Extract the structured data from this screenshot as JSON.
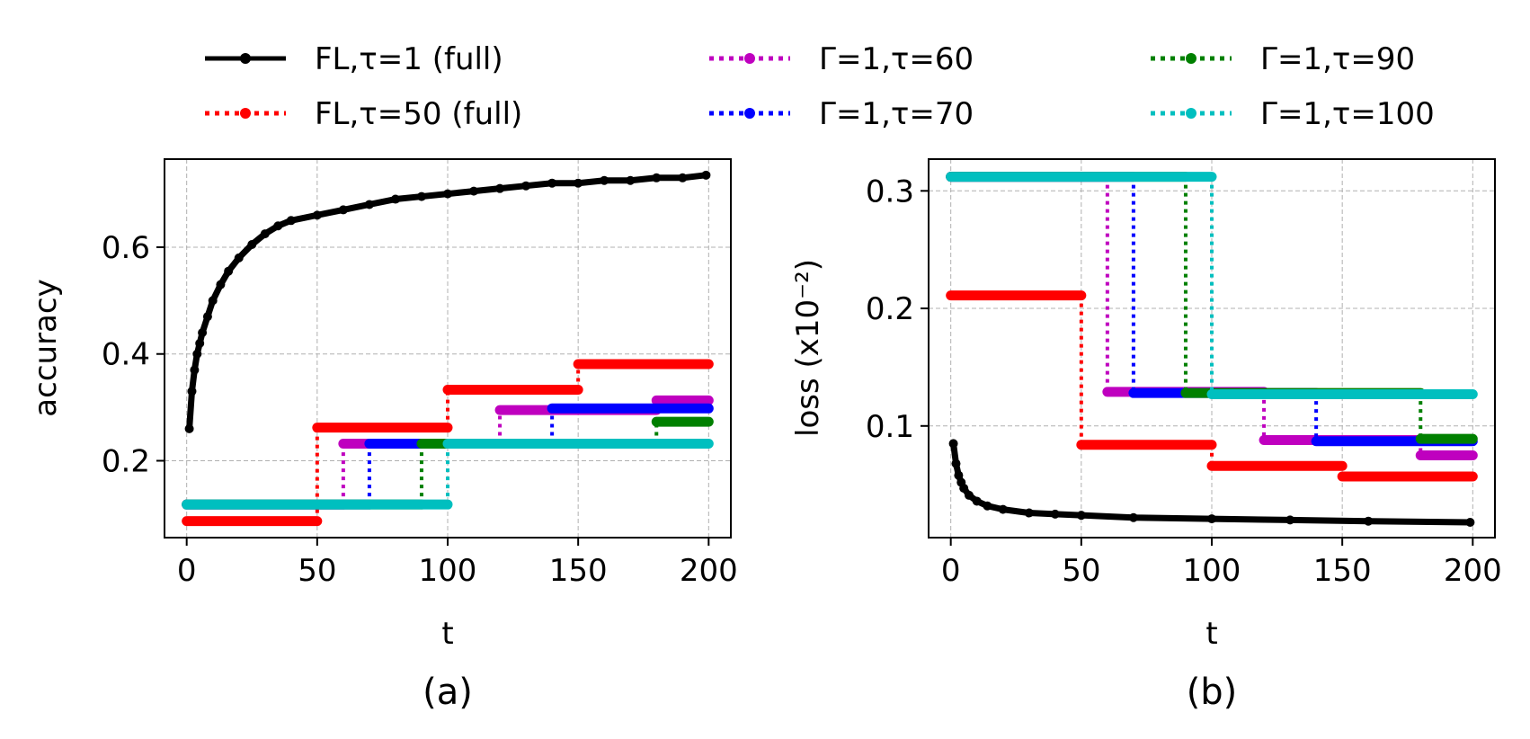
{
  "legend": [
    {
      "label": "FL,τ=1 (full)",
      "color": "#000000",
      "dash": "solid"
    },
    {
      "label": "FL,τ=50 (full)",
      "color": "#ff0000",
      "dash": "dotted"
    },
    {
      "label": "Γ=1,τ=60",
      "color": "#bf00bf",
      "dash": "dotted"
    },
    {
      "label": "Γ=1,τ=70",
      "color": "#0000ff",
      "dash": "dotted"
    },
    {
      "label": "Γ=1,τ=90",
      "color": "#008000",
      "dash": "dotted"
    },
    {
      "label": "Γ=1,τ=100",
      "color": "#00bfbf",
      "dash": "dotted"
    }
  ],
  "chart_data": [
    {
      "type": "line",
      "caption": "(a)",
      "xlabel": "t",
      "ylabel": "accuracy",
      "xlim": [
        -8.5,
        208.5
      ],
      "ylim": [
        0.056,
        0.765
      ],
      "xticks": [
        0,
        50,
        100,
        150,
        200
      ],
      "yticks": [
        0.2,
        0.4,
        0.6
      ],
      "ytick_labels": [
        "0.2",
        "0.4",
        "0.6"
      ],
      "grid": true,
      "series": [
        {
          "name": "FL,τ=1 (full)",
          "kind": "curve",
          "color": "#000000",
          "x": [
            1,
            2,
            3,
            4,
            5,
            6,
            8,
            10,
            13,
            16,
            20,
            25,
            30,
            35,
            40,
            50,
            60,
            70,
            80,
            90,
            100,
            110,
            120,
            130,
            140,
            150,
            160,
            170,
            180,
            190,
            199
          ],
          "y": [
            0.26,
            0.33,
            0.37,
            0.4,
            0.42,
            0.44,
            0.47,
            0.5,
            0.53,
            0.555,
            0.58,
            0.605,
            0.625,
            0.64,
            0.65,
            0.66,
            0.67,
            0.68,
            0.69,
            0.695,
            0.7,
            0.705,
            0.71,
            0.715,
            0.72,
            0.72,
            0.725,
            0.725,
            0.73,
            0.73,
            0.735
          ]
        },
        {
          "name": "FL,τ=50 (full)",
          "kind": "step",
          "color": "#ff0000",
          "segments": [
            {
              "x0": 0,
              "x1": 50,
              "y": 0.087
            },
            {
              "x0": 50,
              "x1": 100,
              "y": 0.262
            },
            {
              "x0": 100,
              "x1": 150,
              "y": 0.333
            },
            {
              "x0": 150,
              "x1": 200,
              "y": 0.381
            }
          ]
        },
        {
          "name": "Γ=1,τ=60",
          "kind": "step",
          "color": "#bf00bf",
          "segments": [
            {
              "x0": 0,
              "x1": 60,
              "y": 0.118
            },
            {
              "x0": 60,
              "x1": 120,
              "y": 0.232
            },
            {
              "x0": 120,
              "x1": 180,
              "y": 0.295
            },
            {
              "x0": 180,
              "x1": 200,
              "y": 0.313
            }
          ]
        },
        {
          "name": "Γ=1,τ=70",
          "kind": "step",
          "color": "#0000ff",
          "segments": [
            {
              "x0": 0,
              "x1": 70,
              "y": 0.118
            },
            {
              "x0": 70,
              "x1": 140,
              "y": 0.232
            },
            {
              "x0": 140,
              "x1": 200,
              "y": 0.298
            }
          ]
        },
        {
          "name": "Γ=1,τ=90",
          "kind": "step",
          "color": "#008000",
          "segments": [
            {
              "x0": 0,
              "x1": 90,
              "y": 0.118
            },
            {
              "x0": 90,
              "x1": 180,
              "y": 0.232
            },
            {
              "x0": 180,
              "x1": 200,
              "y": 0.273
            }
          ]
        },
        {
          "name": "Γ=1,τ=100",
          "kind": "step",
          "color": "#00bfbf",
          "segments": [
            {
              "x0": 0,
              "x1": 100,
              "y": 0.118
            },
            {
              "x0": 100,
              "x1": 200,
              "y": 0.232
            }
          ]
        }
      ]
    },
    {
      "type": "line",
      "caption": "(b)",
      "xlabel": "t",
      "ylabel": "loss (x10⁻²)",
      "xlim": [
        -8.5,
        208.5
      ],
      "ylim": [
        0.005,
        0.327
      ],
      "xticks": [
        0,
        50,
        100,
        150,
        200
      ],
      "yticks": [
        0.1,
        0.2,
        0.3
      ],
      "ytick_labels": [
        "0.1",
        "0.2",
        "0.3"
      ],
      "grid": true,
      "series": [
        {
          "name": "FL,τ=1 (full)",
          "kind": "curve",
          "color": "#000000",
          "x": [
            1,
            2,
            3,
            4,
            5,
            7,
            10,
            14,
            20,
            30,
            40,
            50,
            70,
            100,
            130,
            160,
            199
          ],
          "y": [
            0.085,
            0.068,
            0.058,
            0.052,
            0.047,
            0.041,
            0.036,
            0.032,
            0.029,
            0.026,
            0.025,
            0.024,
            0.022,
            0.021,
            0.02,
            0.019,
            0.018
          ]
        },
        {
          "name": "FL,τ=50 (full)",
          "kind": "step",
          "color": "#ff0000",
          "segments": [
            {
              "x0": 0,
              "x1": 50,
              "y": 0.211
            },
            {
              "x0": 50,
              "x1": 100,
              "y": 0.084
            },
            {
              "x0": 100,
              "x1": 150,
              "y": 0.066
            },
            {
              "x0": 150,
              "x1": 200,
              "y": 0.057
            }
          ]
        },
        {
          "name": "Γ=1,τ=60",
          "kind": "step",
          "color": "#bf00bf",
          "segments": [
            {
              "x0": 0,
              "x1": 60,
              "y": 0.312
            },
            {
              "x0": 60,
              "x1": 120,
              "y": 0.129
            },
            {
              "x0": 120,
              "x1": 180,
              "y": 0.088
            },
            {
              "x0": 180,
              "x1": 200,
              "y": 0.075
            }
          ]
        },
        {
          "name": "Γ=1,τ=70",
          "kind": "step",
          "color": "#0000ff",
          "segments": [
            {
              "x0": 0,
              "x1": 70,
              "y": 0.312
            },
            {
              "x0": 70,
              "x1": 140,
              "y": 0.128
            },
            {
              "x0": 140,
              "x1": 200,
              "y": 0.087
            }
          ]
        },
        {
          "name": "Γ=1,τ=90",
          "kind": "step",
          "color": "#008000",
          "segments": [
            {
              "x0": 0,
              "x1": 90,
              "y": 0.312
            },
            {
              "x0": 90,
              "x1": 180,
              "y": 0.128
            },
            {
              "x0": 180,
              "x1": 200,
              "y": 0.089
            }
          ]
        },
        {
          "name": "Γ=1,τ=100",
          "kind": "step",
          "color": "#00bfbf",
          "segments": [
            {
              "x0": 0,
              "x1": 100,
              "y": 0.312
            },
            {
              "x0": 100,
              "x1": 200,
              "y": 0.127
            }
          ]
        }
      ]
    }
  ]
}
